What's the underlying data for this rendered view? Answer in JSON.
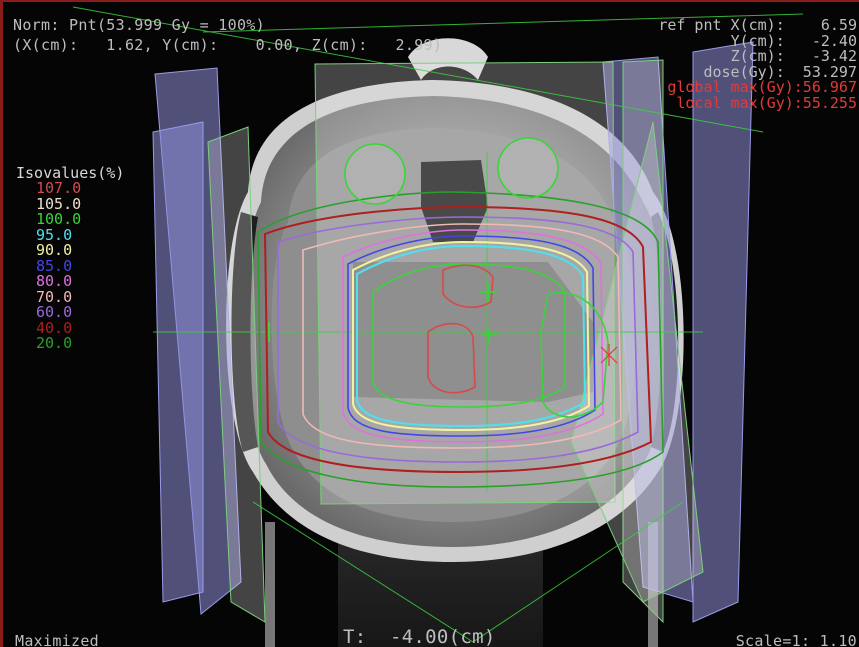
{
  "header": {
    "norm": "Norm: Pnt(53.999 Gy = 100%)",
    "coords": "(X(cm):   1.62, Y(cm):    0.00, Z(cm):   2.99)"
  },
  "reference_point": {
    "rows": [
      {
        "text": "ref pnt X(cm):    6.59",
        "color": "#bdbdbd"
      },
      {
        "text": "Y(cm):   -2.40",
        "color": "#bdbdbd"
      },
      {
        "text": "Z(cm):   -3.42",
        "color": "#bdbdbd"
      },
      {
        "text": "dose(Gy):  53.297",
        "color": "#bdbdbd"
      },
      {
        "text": "global max(Gy):56.967",
        "color": "#e23a3a"
      },
      {
        "text": "local max(Gy):55.255",
        "color": "#e23a3a"
      }
    ]
  },
  "isovalues": {
    "title": "Isovalues(%)",
    "levels": [
      {
        "value": "107.0",
        "color": "#d64a4a"
      },
      {
        "value": "105.0",
        "color": "#ede0c8"
      },
      {
        "value": "100.0",
        "color": "#3ad43a"
      },
      {
        "value": "95.0",
        "color": "#4fe0f0"
      },
      {
        "value": "90.0",
        "color": "#f2f2a0"
      },
      {
        "value": "85.0",
        "color": "#4444e8"
      },
      {
        "value": "80.0",
        "color": "#e070e0"
      },
      {
        "value": "70.0",
        "color": "#f0b8b8"
      },
      {
        "value": "60.0",
        "color": "#9a6ad8"
      },
      {
        "value": "40.0",
        "color": "#b01e1e"
      },
      {
        "value": "20.0",
        "color": "#2aa02a"
      }
    ]
  },
  "footer": {
    "mode": "Maximized",
    "slice": "T:  -4.00(cm)",
    "scale": "Scale=1: 1.10"
  }
}
